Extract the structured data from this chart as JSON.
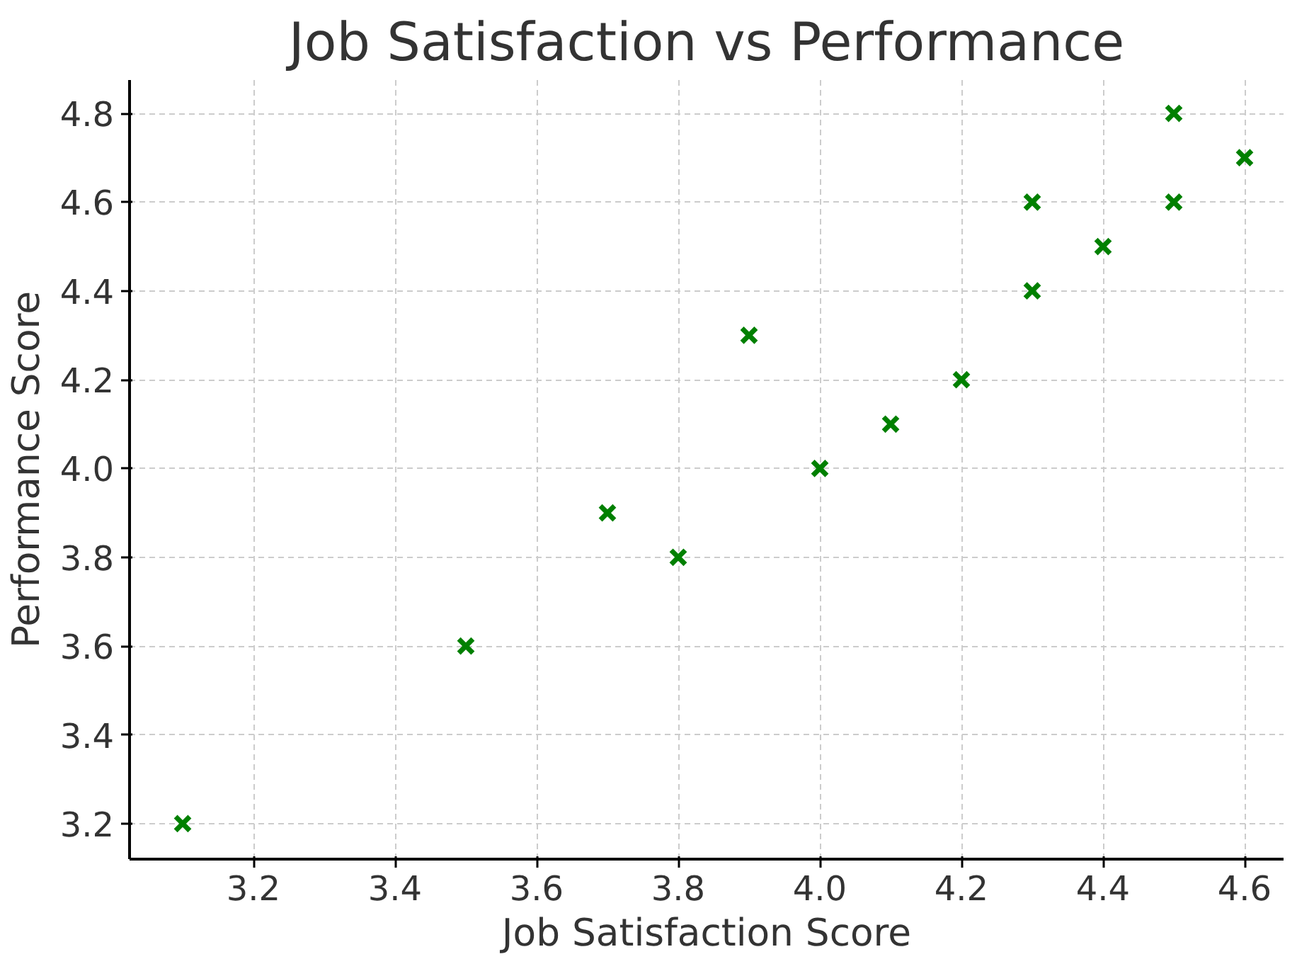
{
  "chart_data": {
    "type": "scatter",
    "title": "Job Satisfaction vs Performance",
    "xlabel": "Job Satisfaction Score",
    "ylabel": "Performance Score",
    "x": [
      3.1,
      3.5,
      3.7,
      3.8,
      3.9,
      4.0,
      4.1,
      4.2,
      4.3,
      4.3,
      4.4,
      4.5,
      4.5,
      4.6
    ],
    "series": [
      {
        "color": "#008000",
        "values": [
          3.2,
          3.6,
          3.9,
          3.8,
          4.3,
          4.0,
          4.1,
          4.2,
          4.6,
          4.4,
          4.5,
          4.8,
          4.6,
          4.7
        ]
      }
    ],
    "xlim": [
      3.025,
      4.655
    ],
    "ylim": [
      3.12,
      4.875
    ],
    "xticks": [
      3.2,
      3.4,
      3.6,
      3.8,
      {
        "value": 4,
        "label": "4.0"
      },
      4.2,
      4.4,
      4.6
    ],
    "yticks": [
      3.2,
      3.4,
      3.6,
      3.8,
      {
        "value": 4,
        "label": "4.0"
      },
      4.2,
      4.4,
      4.6,
      4.8
    ],
    "grid": true,
    "marker": "cross"
  }
}
